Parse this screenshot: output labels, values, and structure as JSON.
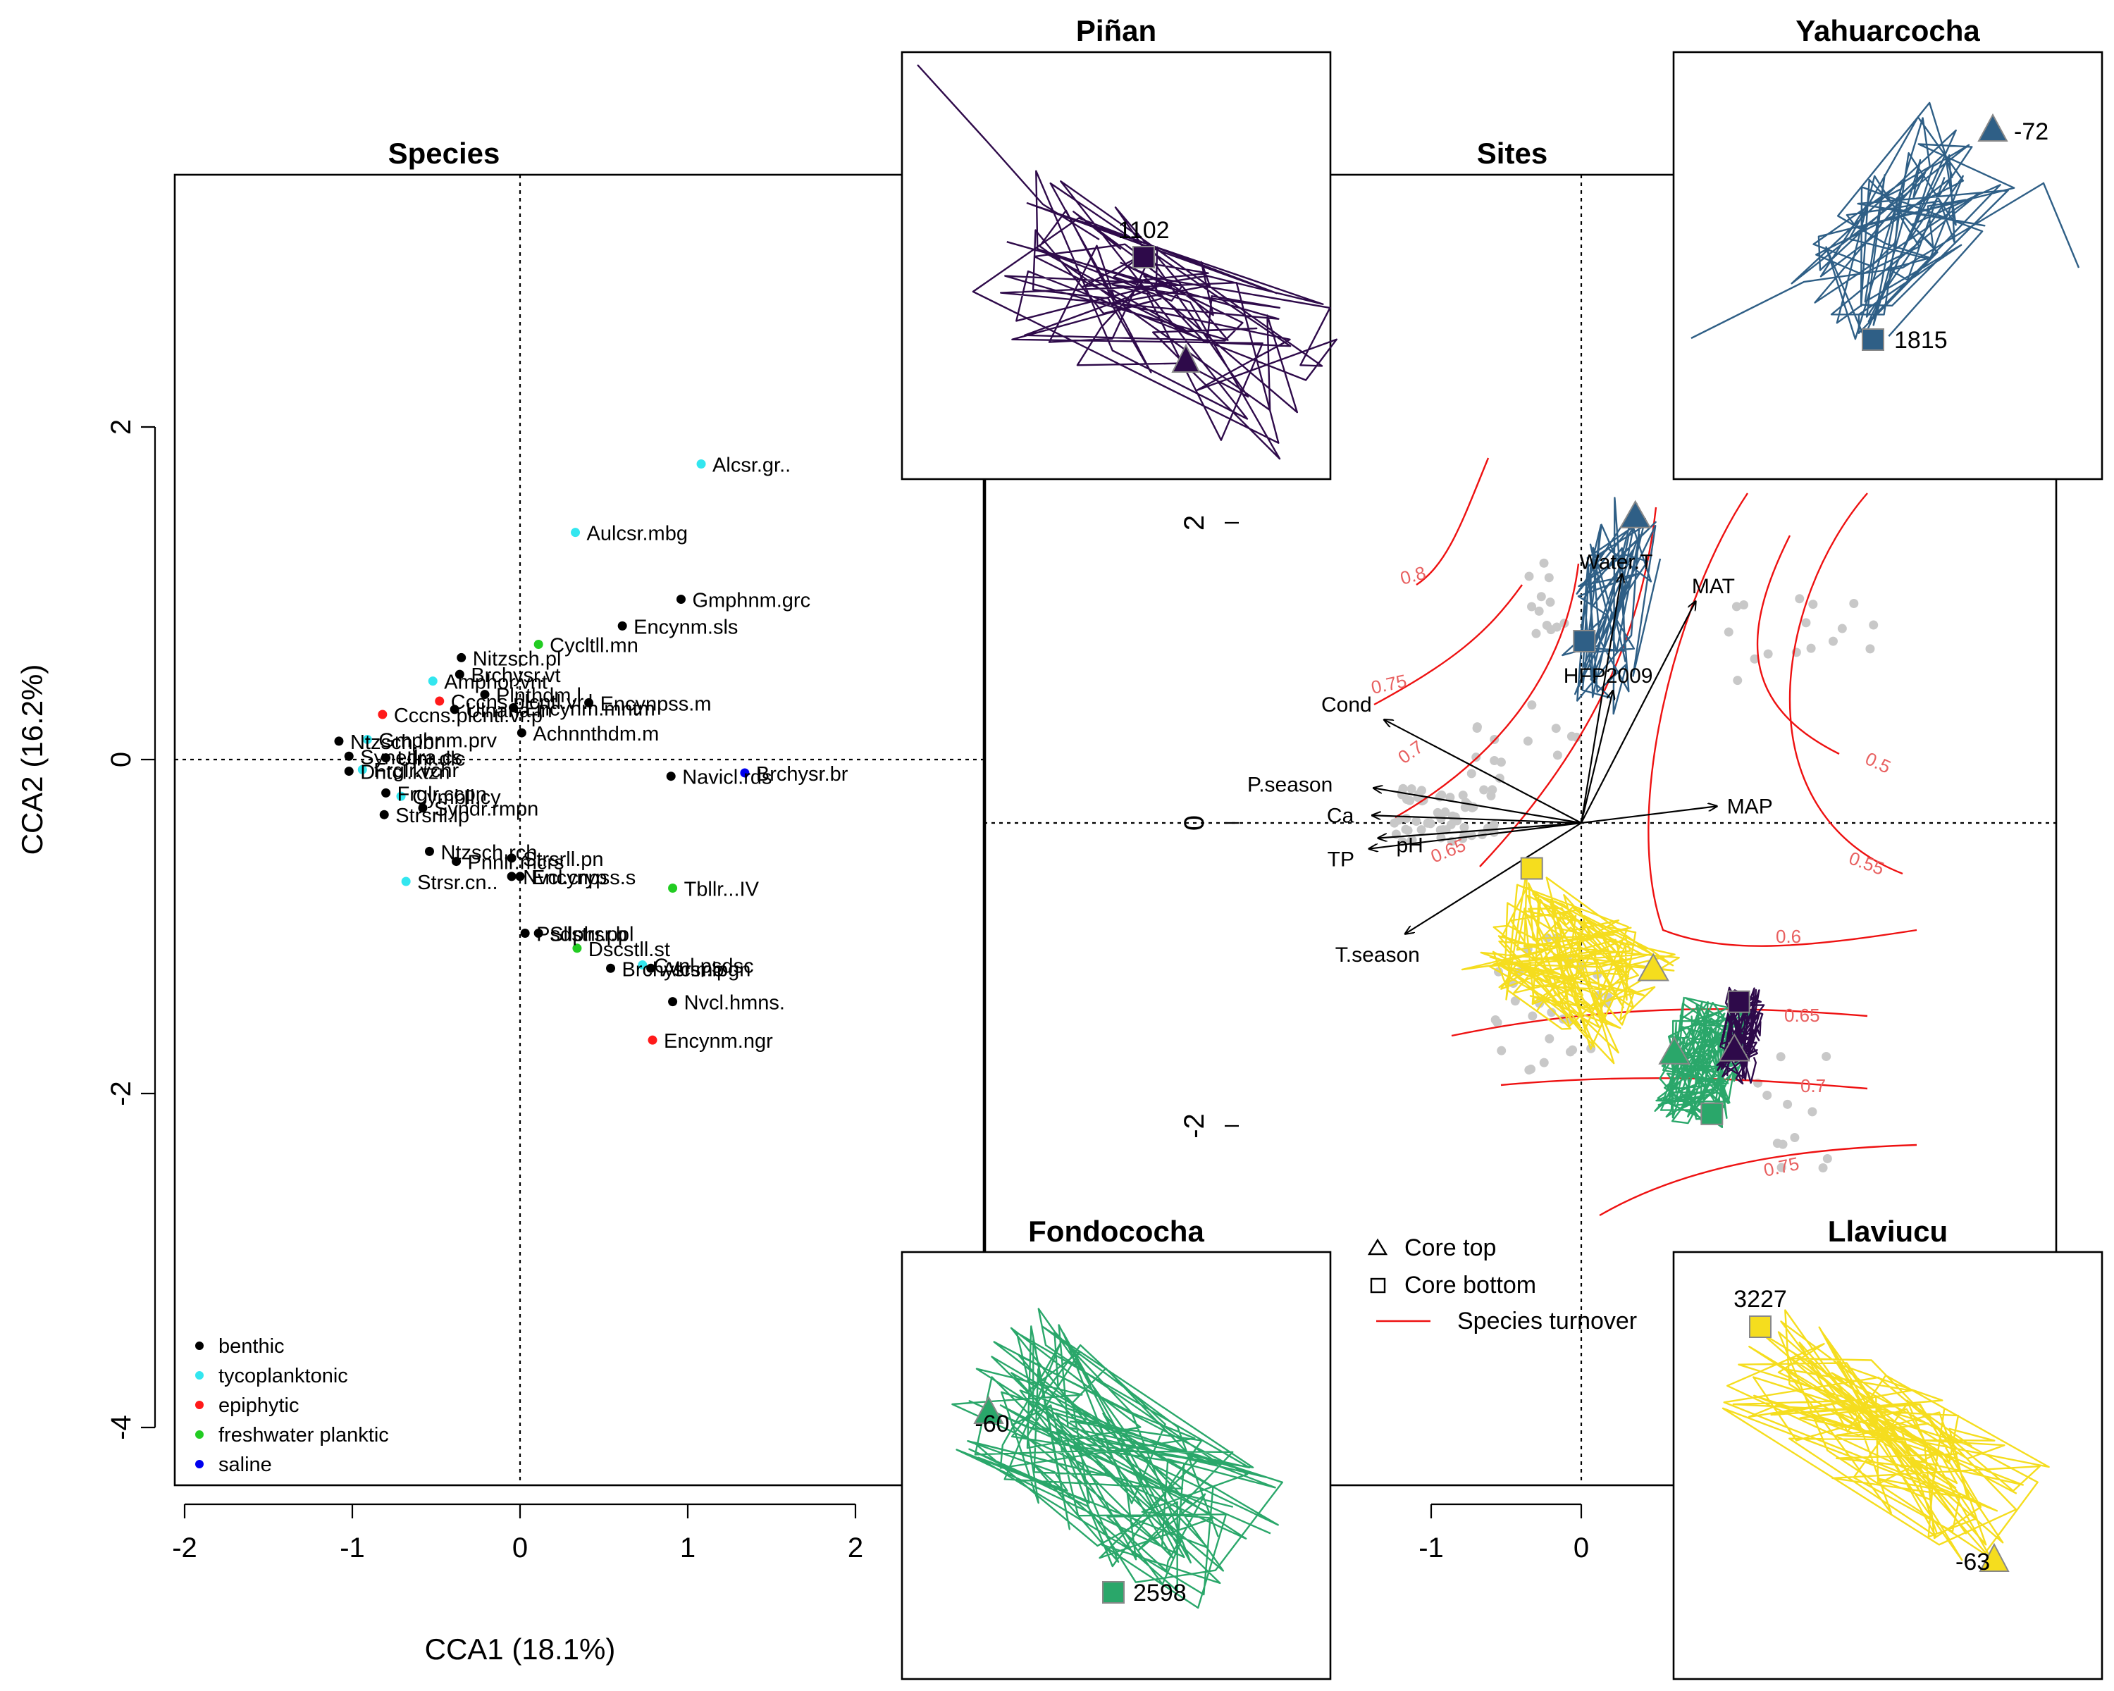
{
  "colors": {
    "benthic": "#000000",
    "tycoplanktonic": "#33e6ef",
    "epiphytic": "#ff1a1a",
    "freshwater_planktic": "#22cc22",
    "saline": "#0000ee",
    "pinan": "#2e0a4a",
    "yahuarcocha": "#2f5f86",
    "fondococha": "#2aa76a",
    "llaviucu": "#f5dd1e",
    "turnover": "#ee1111",
    "contour_label": "#e86060",
    "site_point": "#c8c8c8"
  },
  "species_panel": {
    "title": "Species",
    "xlabel": "CCA1 (18.1%)",
    "ylabel": "CCA2 (16.2%)",
    "x_ticks": [
      "-2",
      "-1",
      "0",
      "1",
      "2"
    ],
    "y_ticks": [
      "-4",
      "-2",
      "0",
      "2"
    ],
    "legend": [
      {
        "label": "benthic",
        "color_key": "benthic"
      },
      {
        "label": "tycoplanktonic",
        "color_key": "tycoplanktonic"
      },
      {
        "label": "epiphytic",
        "color_key": "epiphytic"
      },
      {
        "label": "freshwater planktic",
        "color_key": "freshwater_planktic"
      },
      {
        "label": "saline",
        "color_key": "saline"
      }
    ]
  },
  "sites_panel": {
    "title": "Sites",
    "x_ticks": [
      "-1",
      "0"
    ],
    "y_ticks": [
      "-2",
      "0",
      "2"
    ],
    "legend": [
      "Core top",
      "Core bottom",
      "Species turnover"
    ],
    "env_vectors": [
      "Water.T",
      "MAT",
      "HFP2009",
      "Cond",
      "P.season",
      "Ca",
      "pH",
      "TP",
      "T.season",
      "MAP"
    ],
    "contour_labels": [
      "0.8",
      "0.75",
      "0.7",
      "0.65",
      "0.5",
      "0.55",
      "0.6",
      "0.65",
      "0.7",
      "0.75"
    ]
  },
  "insets": [
    {
      "id": "pinan",
      "title": "Piñan",
      "top_age": "",
      "bottom_age": "1102"
    },
    {
      "id": "yahuarcocha",
      "title": "Yahuarcocha",
      "top_age": "-72",
      "bottom_age": "1815"
    },
    {
      "id": "fondococha",
      "title": "Fondococha",
      "top_age": "-60",
      "bottom_age": "2598"
    },
    {
      "id": "llaviucu",
      "title": "Llaviucu",
      "top_age": "-63",
      "bottom_age": "3227"
    }
  ],
  "chart_data": {
    "type": "scatter",
    "panels": [
      {
        "panel": "Species",
        "xlabel": "CCA1 (18.1%)",
        "ylabel": "CCA2 (16.2%)",
        "xlim": [
          -2,
          2.2
        ],
        "ylim": [
          -4.1,
          3.5
        ],
        "points": [
          {
            "name": "Alcsr.gr..",
            "x": 1.08,
            "y": 1.77,
            "group": "tycoplanktonic"
          },
          {
            "name": "Aulcsr.mbg",
            "x": 0.33,
            "y": 1.36,
            "group": "tycoplanktonic"
          },
          {
            "name": "Gmphnm.grc",
            "x": 0.96,
            "y": 0.96,
            "group": "benthic"
          },
          {
            "name": "Encynm.sls",
            "x": 0.61,
            "y": 0.8,
            "group": "benthic"
          },
          {
            "name": "Cycltll.mn",
            "x": 0.11,
            "y": 0.69,
            "group": "freshwater planktic"
          },
          {
            "name": "Nitzsch.pl",
            "x": -0.35,
            "y": 0.61,
            "group": "benthic"
          },
          {
            "name": "Brchysr.vt",
            "x": -0.36,
            "y": 0.51,
            "group": "benthic"
          },
          {
            "name": "Amphor.vnt",
            "x": -0.52,
            "y": 0.47,
            "group": "tycoplanktonic"
          },
          {
            "name": "Cccns.plcntl.vr.l",
            "x": -0.48,
            "y": 0.35,
            "group": "epiphytic"
          },
          {
            "name": "Plnthdm.l",
            "x": -0.21,
            "y": 0.39,
            "group": "benthic"
          },
          {
            "name": "Encynpss.m",
            "x": 0.41,
            "y": 0.34,
            "group": "benthic"
          },
          {
            "name": "Encynm.mntm",
            "x": -0.04,
            "y": 0.31,
            "group": "benthic"
          },
          {
            "name": "Ulnaria.ln",
            "x": -0.39,
            "y": 0.3,
            "group": "benthic"
          },
          {
            "name": "Cccns.plcntl.vr.p",
            "x": -0.82,
            "y": 0.27,
            "group": "epiphytic"
          },
          {
            "name": "Gmphnm.prv",
            "x": -0.91,
            "y": 0.12,
            "group": "tycoplanktonic"
          },
          {
            "name": "Achnnthdm.m",
            "x": 0.01,
            "y": 0.16,
            "group": "benthic"
          },
          {
            "name": "Ntzsch.lbr",
            "x": -1.08,
            "y": 0.11,
            "group": "benthic"
          },
          {
            "name": "Synedra.cs",
            "x": -1.02,
            "y": 0.02,
            "group": "benthic"
          },
          {
            "name": "Ulnr.dlc",
            "x": -0.8,
            "y": 0.01,
            "group": "benthic"
          },
          {
            "name": "Frglr.vchr",
            "x": -0.94,
            "y": -0.06,
            "group": "tycoplanktonic"
          },
          {
            "name": "Dntcl.ktzn",
            "x": -1.02,
            "y": -0.07,
            "group": "benthic"
          },
          {
            "name": "Frglr.ccpn",
            "x": -0.8,
            "y": -0.2,
            "group": "benthic"
          },
          {
            "name": "Cymbll.cy",
            "x": -0.71,
            "y": -0.22,
            "group": "tycoplanktonic"
          },
          {
            "name": "Syndr.rmpn",
            "x": -0.58,
            "y": -0.29,
            "group": "benthic"
          },
          {
            "name": "Strsrll.lp",
            "x": -0.81,
            "y": -0.33,
            "group": "benthic"
          },
          {
            "name": "Brchysr.br",
            "x": 1.34,
            "y": -0.08,
            "group": "saline"
          },
          {
            "name": "Navicl.rds",
            "x": 0.9,
            "y": -0.1,
            "group": "benthic"
          },
          {
            "name": "Ntzsch.rch",
            "x": -0.54,
            "y": -0.55,
            "group": "benthic"
          },
          {
            "name": "Pnnlr.mcrs",
            "x": -0.38,
            "y": -0.61,
            "group": "benthic"
          },
          {
            "name": "Strsrll.pn",
            "x": -0.05,
            "y": -0.59,
            "group": "benthic"
          },
          {
            "name": "Nvcl.cryp",
            "x": -0.05,
            "y": -0.7,
            "group": "benthic"
          },
          {
            "name": "Encynpss.s",
            "x": 0.0,
            "y": -0.7,
            "group": "benthic"
          },
          {
            "name": "Strsr.cn..",
            "x": -0.68,
            "y": -0.73,
            "group": "tycoplanktonic"
          },
          {
            "name": "Tbllr...IV",
            "x": 0.91,
            "y": -0.77,
            "group": "freshwater planktic"
          },
          {
            "name": "Psdstrsr.b",
            "x": 0.03,
            "y": -1.04,
            "group": "benthic"
          },
          {
            "name": "Sllphr.ppl",
            "x": 0.11,
            "y": -1.04,
            "group": "benthic"
          },
          {
            "name": "Dscstll.st",
            "x": 0.34,
            "y": -1.13,
            "group": "freshwater planktic"
          },
          {
            "name": "Cvnl.psdsc",
            "x": 0.73,
            "y": -1.23,
            "group": "tycoplanktonic"
          },
          {
            "name": "Brchysr.mo",
            "x": 0.54,
            "y": -1.25,
            "group": "benthic"
          },
          {
            "name": "Alcsr.lpgn",
            "x": 0.78,
            "y": -1.25,
            "group": "benthic"
          },
          {
            "name": "Nvcl.hmns.",
            "x": 0.91,
            "y": -1.45,
            "group": "benthic"
          },
          {
            "name": "Encynm.ngr",
            "x": 0.79,
            "y": -1.68,
            "group": "epiphytic"
          }
        ]
      },
      {
        "panel": "Sites",
        "xlim": [
          -1.1,
          3.2
        ],
        "ylim": [
          -2.8,
          2.9
        ],
        "env_vectors": [
          {
            "name": "Water.T",
            "x": 0.27,
            "y": 1.64
          },
          {
            "name": "MAT",
            "x": 0.76,
            "y": 1.46
          },
          {
            "name": "HFP2009",
            "x": 0.21,
            "y": 0.87
          },
          {
            "name": "Cond",
            "x": -1.31,
            "y": 0.68
          },
          {
            "name": "P.season",
            "x": -1.38,
            "y": 0.23
          },
          {
            "name": "Ca",
            "x": -1.39,
            "y": 0.05
          },
          {
            "name": "pH",
            "x": -1.35,
            "y": -0.1
          },
          {
            "name": "TP",
            "x": -1.41,
            "y": -0.17
          },
          {
            "name": "T.season",
            "x": -1.17,
            "y": -0.73
          },
          {
            "name": "MAP",
            "x": 0.9,
            "y": 0.11
          }
        ],
        "core_points": [
          {
            "site": "Yahuarcocha",
            "type": "top",
            "x": 0.36,
            "y": 2.02
          },
          {
            "site": "Yahuarcocha",
            "type": "bottom",
            "x": 0.02,
            "y": 1.2
          },
          {
            "site": "Llaviucu",
            "type": "top",
            "x": 0.48,
            "y": -0.97
          },
          {
            "site": "Llaviucu",
            "type": "bottom",
            "x": -0.33,
            "y": -0.3
          },
          {
            "site": "Fondococha",
            "type": "top",
            "x": 0.62,
            "y": -1.52
          },
          {
            "site": "Fondococha",
            "type": "bottom",
            "x": 0.87,
            "y": -1.92
          },
          {
            "site": "Piñan",
            "type": "top",
            "x": 1.02,
            "y": -1.5
          },
          {
            "site": "Piñan",
            "type": "bottom",
            "x": 1.05,
            "y": -1.18
          }
        ],
        "contours": [
          {
            "label": "0.8"
          },
          {
            "label": "0.75"
          },
          {
            "label": "0.7"
          },
          {
            "label": "0.65"
          },
          {
            "label": "0.5"
          },
          {
            "label": "0.55"
          },
          {
            "label": "0.6"
          },
          {
            "label": "0.65"
          },
          {
            "label": "0.7"
          },
          {
            "label": "0.75"
          }
        ]
      }
    ]
  }
}
